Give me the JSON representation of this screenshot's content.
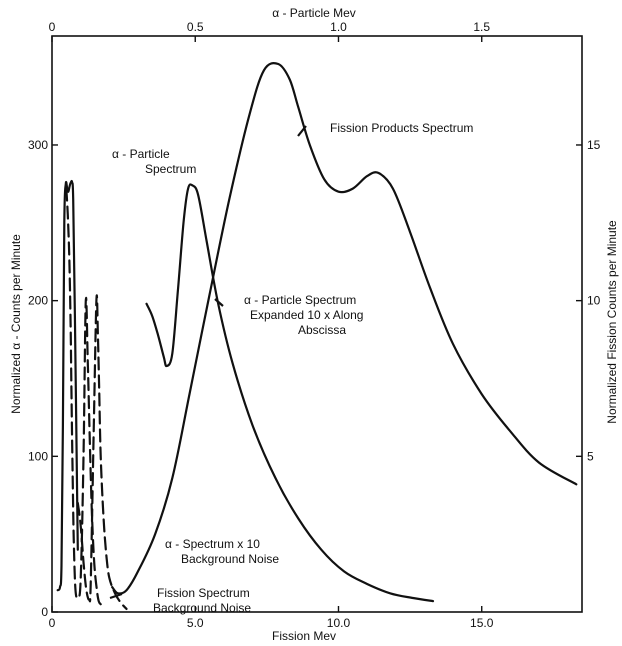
{
  "chart_data": {
    "type": "line",
    "top_axis": {
      "label": "α - Particle Mev",
      "ticks": [
        {
          "value": 0,
          "label": "0"
        },
        {
          "value": 0.5,
          "label": "0.5"
        },
        {
          "value": 1.0,
          "label": "1.0"
        },
        {
          "value": 1.5,
          "label": "1.5"
        }
      ],
      "range": [
        0,
        1.85
      ]
    },
    "bottom_axis": {
      "label": "Fission Mev",
      "ticks": [
        {
          "value": 0,
          "label": "0"
        },
        {
          "value": 5,
          "label": "5.0"
        },
        {
          "value": 10,
          "label": "10.0"
        },
        {
          "value": 15,
          "label": "15.0"
        }
      ],
      "range": [
        0,
        18.5
      ]
    },
    "left_axis": {
      "label": "Normalized α - Counts per Minute",
      "ticks": [
        {
          "value": 0,
          "label": "0"
        },
        {
          "value": 100,
          "label": "100"
        },
        {
          "value": 200,
          "label": "200"
        },
        {
          "value": 300,
          "label": "300"
        }
      ],
      "range": [
        0,
        370
      ]
    },
    "right_axis": {
      "label": "Normalized Fission Counts per Minute",
      "ticks": [
        {
          "value": 5,
          "label": "5"
        },
        {
          "value": 10,
          "label": "10"
        },
        {
          "value": 15,
          "label": "15"
        }
      ],
      "range": [
        0,
        18.5
      ]
    },
    "series": [
      {
        "name": "Fission Products Spectrum",
        "axis": "fission",
        "x": [
          2.1,
          2.3,
          2.6,
          3.0,
          3.6,
          4.2,
          4.8,
          5.5,
          6.2,
          6.9,
          7.4,
          7.9,
          8.3,
          8.6,
          9.0,
          9.5,
          10.0,
          10.5,
          11.0,
          11.4,
          11.9,
          12.5,
          13.2,
          14.0,
          15.0,
          16.0,
          17.0,
          18.3
        ],
        "y": [
          0.8,
          0.6,
          0.7,
          1.3,
          2.5,
          4.3,
          7.0,
          10.2,
          13.3,
          16.0,
          17.4,
          17.6,
          17.1,
          16.2,
          15.0,
          13.9,
          13.5,
          13.6,
          14.0,
          14.1,
          13.6,
          12.2,
          10.4,
          8.6,
          7.0,
          5.8,
          4.8,
          4.1
        ]
      },
      {
        "name": "α - Particle Spectrum Expanded 10 x Along Abscissa",
        "axis": "fission",
        "x": [
          3.3,
          3.5,
          3.7,
          3.9,
          4.0,
          4.2,
          4.4,
          4.6,
          4.75,
          4.9,
          5.1,
          5.4,
          5.8,
          6.3,
          7.0,
          7.8,
          8.6,
          9.4,
          10.2,
          11.0,
          11.8,
          12.6,
          13.3
        ],
        "y": [
          9.9,
          9.5,
          8.9,
          8.2,
          7.9,
          8.3,
          10.4,
          12.6,
          13.6,
          13.7,
          13.4,
          11.9,
          9.9,
          8.0,
          6.0,
          4.3,
          3.0,
          2.0,
          1.3,
          0.9,
          0.6,
          0.45,
          0.35
        ]
      },
      {
        "name": "α - Particle Spectrum",
        "axis": "alpha",
        "x": [
          0.02,
          0.028,
          0.033,
          0.038,
          0.043,
          0.048,
          0.053,
          0.057,
          0.062,
          0.066,
          0.07,
          0.074,
          0.08,
          0.09
        ],
        "y": [
          14,
          16,
          30,
          120,
          250,
          275,
          272,
          270,
          274,
          276,
          276,
          265,
          190,
          40
        ]
      },
      {
        "name": "α - Spectrum x 10 Background Noise",
        "axis": "alpha",
        "style": "dashed",
        "x": [
          0.05,
          0.055,
          0.06,
          0.065,
          0.068,
          0.072,
          0.076,
          0.082,
          0.09,
          0.1,
          0.11,
          0.118,
          0.125,
          0.132,
          0.14,
          0.148,
          0.156,
          0.163,
          0.17
        ],
        "y": [
          272,
          255,
          230,
          185,
          140,
          90,
          45,
          14,
          10,
          20,
          100,
          200,
          160,
          110,
          60,
          30,
          15,
          7,
          5
        ]
      },
      {
        "name": "Fission Spectrum Background Noise",
        "axis": "fission",
        "style": "dashed",
        "x": [
          0.9,
          1.0,
          1.1,
          1.2,
          1.3,
          1.35,
          1.45,
          1.55,
          1.6,
          1.65,
          1.7,
          1.8,
          1.9,
          2.0,
          2.2,
          2.4,
          2.6
        ],
        "y": [
          3.5,
          2.8,
          1.6,
          0.7,
          0.4,
          0.9,
          5.5,
          10.0,
          9.0,
          7.0,
          5.0,
          3.0,
          1.8,
          1.1,
          0.6,
          0.3,
          0.1
        ]
      }
    ],
    "annotations": [
      {
        "id": "fp",
        "lines": [
          "Fission Products Spectrum"
        ]
      },
      {
        "id": "aps",
        "lines": [
          "α - Particle",
          "Spectrum"
        ]
      },
      {
        "id": "ape",
        "lines": [
          "α - Particle Spectrum",
          "Expanded 10 x Along",
          "Abscissa"
        ]
      },
      {
        "id": "asb",
        "lines": [
          "α - Spectrum x 10",
          "Background Noise"
        ]
      },
      {
        "id": "fsb",
        "lines": [
          "Fission Spectrum",
          "Background Noise"
        ]
      }
    ],
    "grid": false,
    "legend": "none"
  }
}
